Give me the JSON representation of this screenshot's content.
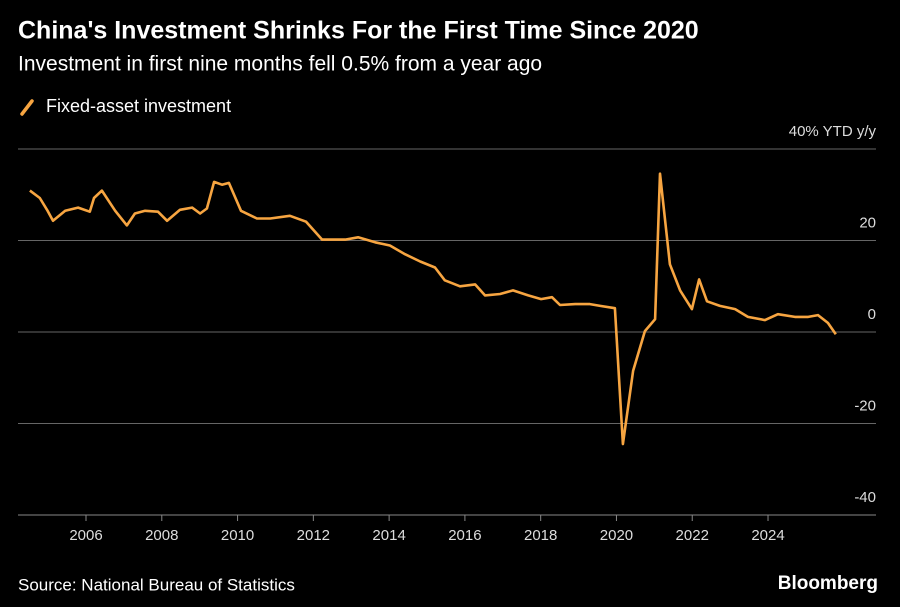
{
  "chart_data": {
    "type": "line",
    "title": "China's Investment Shrinks For the First Time Since 2020",
    "subtitle": "Investment in first nine months fell 0.5% from a year ago",
    "source": "Source: National Bureau of Statistics",
    "brand": "Bloomberg",
    "x": [
      2004.52,
      2004.78,
      2004.97,
      2005.13,
      2005.45,
      2005.79,
      2006.1,
      2006.21,
      2006.42,
      2006.77,
      2007.08,
      2007.29,
      2007.56,
      2007.9,
      2008.14,
      2008.48,
      2008.8,
      2009.01,
      2009.19,
      2009.38,
      2009.59,
      2009.77,
      2010.09,
      2010.51,
      2010.86,
      2011.38,
      2011.81,
      2012.23,
      2012.84,
      2013.18,
      2013.63,
      2014.02,
      2014.42,
      2014.82,
      2015.21,
      2015.47,
      2015.87,
      2016.27,
      2016.53,
      2016.93,
      2017.27,
      2017.67,
      2018.01,
      2018.3,
      2018.51,
      2018.91,
      2019.3,
      2019.57,
      2019.96,
      2020.17,
      2020.44,
      2020.75,
      2021.02,
      2021.15,
      2021.41,
      2021.68,
      2021.99,
      2022.18,
      2022.39,
      2022.73,
      2023.13,
      2023.47,
      2023.92,
      2024.26,
      2024.71,
      2025.06,
      2025.32,
      2025.58,
      2025.79
    ],
    "series": [
      {
        "name": "Fixed-asset investment",
        "color": "#f7a541",
        "values": [
          30.9,
          29.3,
          26.7,
          24.3,
          26.5,
          27.2,
          26.3,
          29.3,
          30.9,
          26.5,
          23.3,
          25.9,
          26.5,
          26.3,
          24.3,
          26.7,
          27.2,
          25.9,
          27,
          32.8,
          32.2,
          32.6,
          26.5,
          24.8,
          24.8,
          25.4,
          24.1,
          20.2,
          20.2,
          20.7,
          19.6,
          18.9,
          17,
          15.4,
          14.1,
          11.3,
          10,
          10.4,
          8,
          8.3,
          9.1,
          8,
          7.2,
          7.6,
          5.9,
          6.1,
          6.1,
          5.7,
          5.2,
          -24.5,
          -8.5,
          0.2,
          2.8,
          34.6,
          14.8,
          9.1,
          5,
          11.5,
          6.7,
          5.7,
          5,
          3.3,
          2.6,
          3.9,
          3.3,
          3.3,
          3.7,
          2,
          -0.5
        ]
      }
    ],
    "xlim": [
      2004.205,
      2026.85
    ],
    "xticks": [
      2006,
      2008,
      2010,
      2012,
      2014,
      2016,
      2018,
      2020,
      2022,
      2024
    ],
    "ylim": [
      -40,
      40
    ],
    "yticks": [
      -40,
      -20,
      0,
      20,
      {
        "value": 40,
        "label": "40% YTD y/y"
      }
    ],
    "grid": true
  }
}
